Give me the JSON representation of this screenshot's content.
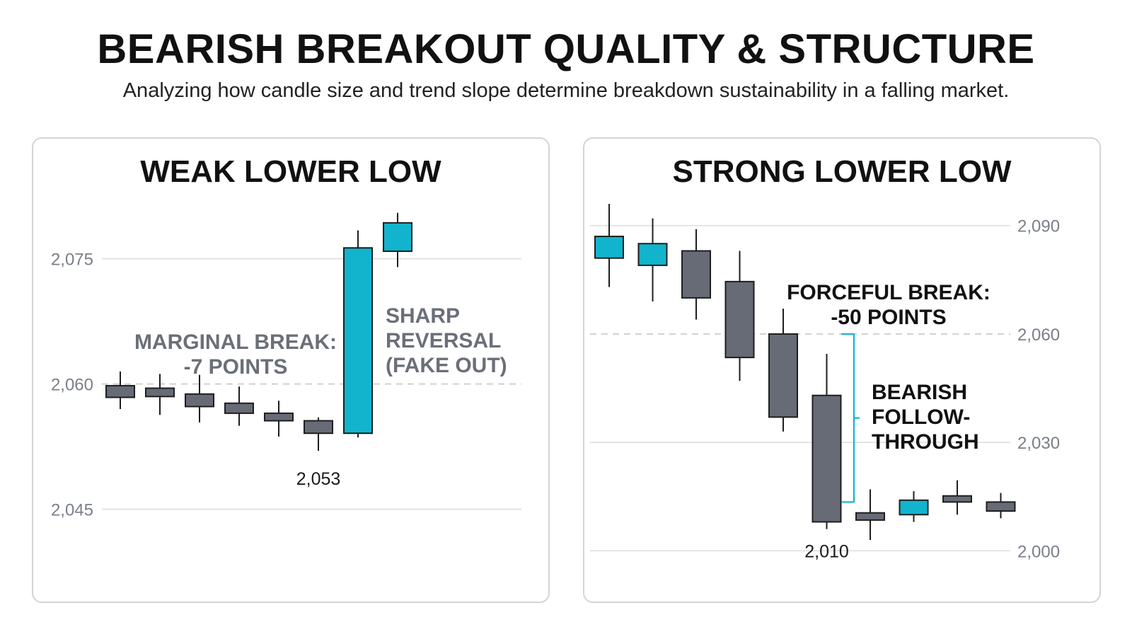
{
  "title": "BEARISH BREAKOUT QUALITY & STRUCTURE",
  "subtitle": "Analyzing how candle size and trend slope determine breakdown sustainability in a falling market.",
  "colors": {
    "bearish": "#676b76",
    "bullish": "#12b4cd",
    "grid": "#d9d9d9",
    "bracket": "#12b4cd"
  },
  "chart_data": [
    {
      "type": "candlestick",
      "title": "WEAK LOWER LOW",
      "y_ticks": [
        "2,075",
        "2,060",
        "2,045"
      ],
      "y_tick_values": [
        2075,
        2060,
        2045
      ],
      "ylim": [
        2037,
        2082
      ],
      "level_line": 2060,
      "candles": [
        {
          "open": 2059.8,
          "close": 2058.4,
          "high": 2061.5,
          "low": 2057.0,
          "dir": "down"
        },
        {
          "open": 2059.5,
          "close": 2058.5,
          "high": 2061.2,
          "low": 2056.3,
          "dir": "down"
        },
        {
          "open": 2058.8,
          "close": 2057.3,
          "high": 2061.1,
          "low": 2055.4,
          "dir": "down"
        },
        {
          "open": 2057.7,
          "close": 2056.5,
          "high": 2059.7,
          "low": 2055.0,
          "dir": "down"
        },
        {
          "open": 2056.5,
          "close": 2055.6,
          "high": 2058.0,
          "low": 2053.7,
          "dir": "down"
        },
        {
          "open": 2055.6,
          "close": 2054.1,
          "high": 2056.0,
          "low": 2052.0,
          "dir": "down"
        },
        {
          "open": 2054.1,
          "close": 2076.3,
          "high": 2078.4,
          "low": 2053.6,
          "dir": "up"
        },
        {
          "open": 2075.9,
          "close": 2079.3,
          "high": 2080.5,
          "low": 2074.0,
          "dir": "up"
        }
      ],
      "low_label": "2,053",
      "annotations": [
        {
          "lines": [
            "MARGINAL BREAK:",
            "-7 POINTS"
          ]
        },
        {
          "lines": [
            "SHARP",
            "REVERSAL",
            "(FAKE OUT)"
          ]
        }
      ]
    },
    {
      "type": "candlestick",
      "title": "STRONG LOWER LOW",
      "y_ticks": [
        "2,090",
        "2,060",
        "2,030",
        "2,000"
      ],
      "y_tick_values": [
        2090,
        2060,
        2030,
        2000
      ],
      "ylim": [
        1993,
        2097
      ],
      "level_line": 2060,
      "candles": [
        {
          "open": 2081,
          "close": 2087,
          "high": 2096,
          "low": 2073,
          "dir": "up"
        },
        {
          "open": 2079,
          "close": 2085,
          "high": 2092,
          "low": 2069,
          "dir": "up"
        },
        {
          "open": 2083,
          "close": 2070,
          "high": 2089,
          "low": 2064,
          "dir": "down"
        },
        {
          "open": 2074.5,
          "close": 2053.5,
          "high": 2083,
          "low": 2047,
          "dir": "down"
        },
        {
          "open": 2060,
          "close": 2037,
          "high": 2067,
          "low": 2033,
          "dir": "down"
        },
        {
          "open": 2043,
          "close": 2008,
          "high": 2054.5,
          "low": 2006,
          "dir": "down"
        },
        {
          "open": 2010.5,
          "close": 2008.5,
          "high": 2017,
          "low": 2003,
          "dir": "down"
        },
        {
          "open": 2010,
          "close": 2014,
          "high": 2016.5,
          "low": 2008,
          "dir": "up"
        },
        {
          "open": 2015.2,
          "close": 2013.5,
          "high": 2019.5,
          "low": 2010,
          "dir": "down"
        },
        {
          "open": 2013.5,
          "close": 2011,
          "high": 2016,
          "low": 2009,
          "dir": "down"
        }
      ],
      "low_label": "2,010",
      "annotations": [
        {
          "lines": [
            "FORCEFUL BREAK:",
            "-50 POINTS"
          ]
        },
        {
          "lines": [
            "BEARISH",
            "FOLLOW-",
            "THROUGH"
          ]
        }
      ]
    }
  ]
}
